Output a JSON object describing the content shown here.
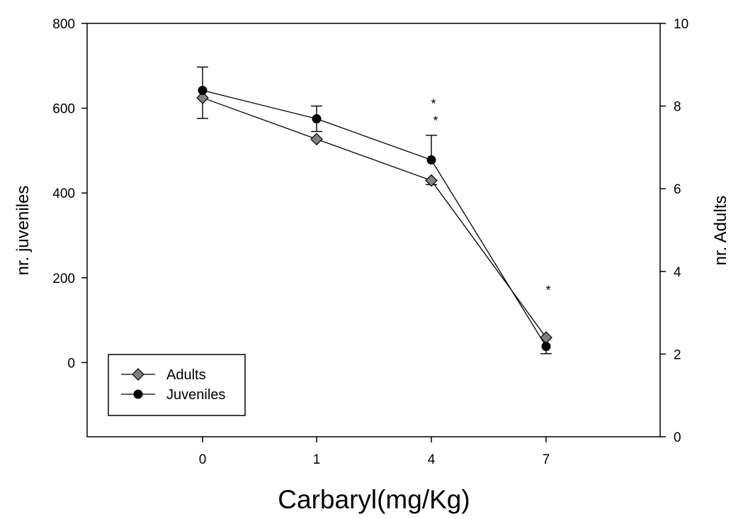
{
  "chart_data": {
    "type": "line",
    "xlabel": "Carbaryl(mg/Kg)",
    "ylabel_left": "nr. juveniles",
    "ylabel_right": "nr. Adults",
    "categories": [
      "0",
      "1",
      "4",
      "7"
    ],
    "y_left": {
      "range": [
        -175,
        800
      ],
      "ticks": [
        0,
        200,
        400,
        600,
        800
      ]
    },
    "y_right": {
      "range": [
        0,
        10
      ],
      "ticks": [
        0,
        2,
        4,
        6,
        8,
        10
      ]
    },
    "grid": false,
    "legend_position": "bottom-left",
    "series": [
      {
        "name": "Adults",
        "axis": "right",
        "marker": "diamond",
        "color": "#808080",
        "values": [
          8.2,
          7.2,
          6.2,
          2.4
        ],
        "error_up": [
          0,
          0,
          0,
          0
        ],
        "error_down": [
          0.5,
          0,
          0.1,
          0
        ]
      },
      {
        "name": "Juveniles",
        "axis": "left",
        "marker": "circle",
        "color": "#000000",
        "values": [
          642,
          575,
          478,
          38
        ],
        "error_up": [
          55,
          30,
          58,
          0
        ],
        "error_down": [
          0,
          30,
          0,
          17
        ]
      }
    ],
    "annotations": [
      {
        "text": "*",
        "category": "4",
        "value": 620
      },
      {
        "text": "*",
        "category": "4",
        "value": 580
      },
      {
        "text": "*",
        "category": "7",
        "value": 180
      }
    ]
  }
}
